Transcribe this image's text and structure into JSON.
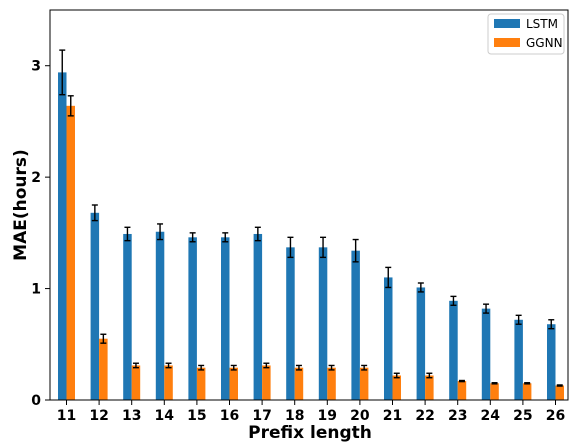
{
  "chart_data": {
    "type": "bar",
    "title": "",
    "xlabel": "Prefix length",
    "ylabel": "MAE(hours)",
    "categories": [
      "11",
      "12",
      "13",
      "14",
      "15",
      "16",
      "17",
      "18",
      "19",
      "20",
      "21",
      "22",
      "23",
      "24",
      "25",
      "26"
    ],
    "ylim": [
      0,
      3.5
    ],
    "yticks": [
      "0",
      "1",
      "2",
      "3"
    ],
    "grid": false,
    "legend_position": "top-right",
    "series": [
      {
        "name": "LSTM",
        "color": "#1f77b4",
        "values": [
          2.94,
          1.68,
          1.49,
          1.51,
          1.46,
          1.46,
          1.49,
          1.37,
          1.37,
          1.34,
          1.1,
          1.01,
          0.89,
          0.82,
          0.72,
          0.68
        ],
        "errors": [
          0.2,
          0.07,
          0.06,
          0.07,
          0.04,
          0.04,
          0.06,
          0.09,
          0.09,
          0.1,
          0.09,
          0.04,
          0.04,
          0.04,
          0.04,
          0.04
        ]
      },
      {
        "name": "GGNN",
        "color": "#ff7f0e",
        "values": [
          2.64,
          0.55,
          0.31,
          0.31,
          0.29,
          0.29,
          0.31,
          0.29,
          0.29,
          0.29,
          0.22,
          0.22,
          0.17,
          0.15,
          0.15,
          0.13
        ],
        "errors": [
          0.09,
          0.04,
          0.02,
          0.02,
          0.02,
          0.02,
          0.02,
          0.02,
          0.02,
          0.02,
          0.02,
          0.02,
          0.005,
          0.005,
          0.005,
          0.005
        ]
      }
    ]
  }
}
